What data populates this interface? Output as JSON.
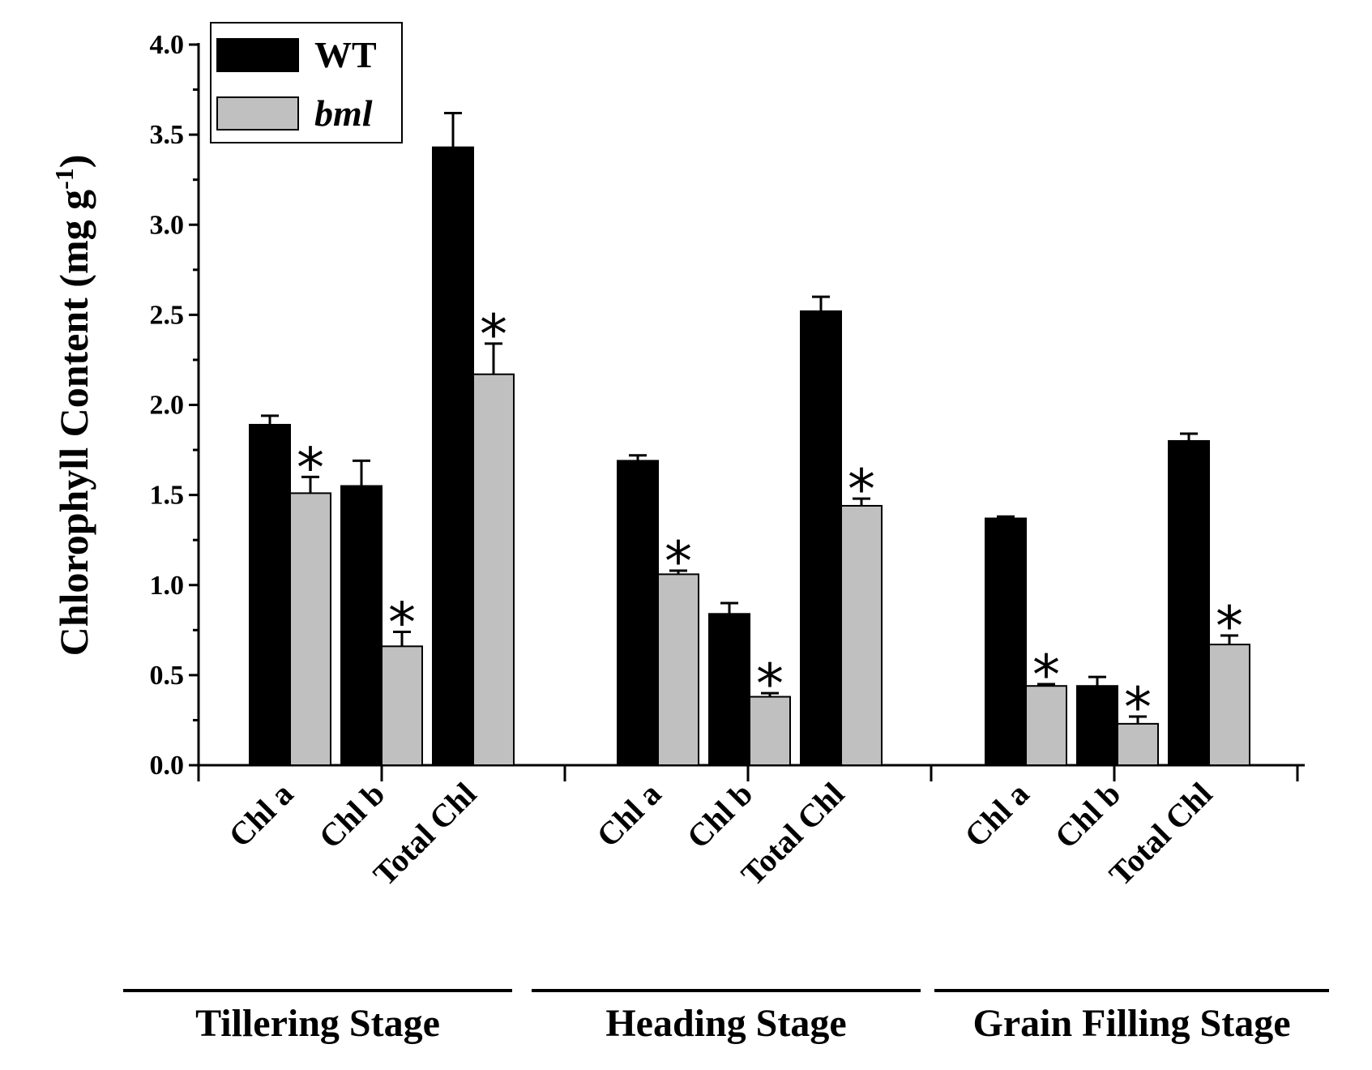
{
  "chart_data": {
    "type": "bar",
    "ylabel": "Chlorophyll Content (mg g",
    "ylabel_sup": "-1",
    "ylabel_close": ")",
    "ylim": [
      0,
      4.0
    ],
    "yticks": [
      "0.0",
      "0.5",
      "1.0",
      "1.5",
      "2.0",
      "2.5",
      "3.0",
      "3.5",
      "4.0"
    ],
    "legend": {
      "position": "top-left",
      "items": [
        {
          "name": "WT",
          "color": "#000000",
          "italic": false
        },
        {
          "name": "bml",
          "color": "#c0c0c0",
          "italic": true
        }
      ]
    },
    "significance_marker": "*",
    "stages": [
      {
        "name": "Tillering Stage",
        "categories": [
          "Chl a",
          "Chl b",
          "Total Chl"
        ],
        "WT": {
          "values": [
            1.89,
            1.55,
            3.43
          ],
          "errors": [
            0.05,
            0.14,
            0.19
          ]
        },
        "bml": {
          "values": [
            1.51,
            0.66,
            2.17
          ],
          "errors": [
            0.09,
            0.08,
            0.17
          ],
          "significant": [
            true,
            true,
            true
          ]
        }
      },
      {
        "name": "Heading Stage",
        "categories": [
          "Chl a",
          "Chl b",
          "Total Chl"
        ],
        "WT": {
          "values": [
            1.69,
            0.84,
            2.52
          ],
          "errors": [
            0.03,
            0.06,
            0.08
          ]
        },
        "bml": {
          "values": [
            1.06,
            0.38,
            1.44
          ],
          "errors": [
            0.02,
            0.02,
            0.04
          ],
          "significant": [
            true,
            true,
            true
          ]
        }
      },
      {
        "name": "Grain Filling Stage",
        "categories": [
          "Chl a",
          "Chl b",
          "Total Chl"
        ],
        "WT": {
          "values": [
            1.37,
            0.44,
            1.8
          ],
          "errors": [
            0.01,
            0.05,
            0.04
          ]
        },
        "bml": {
          "values": [
            0.44,
            0.23,
            0.67
          ],
          "errors": [
            0.01,
            0.04,
            0.05
          ],
          "significant": [
            true,
            true,
            true
          ]
        }
      }
    ]
  }
}
